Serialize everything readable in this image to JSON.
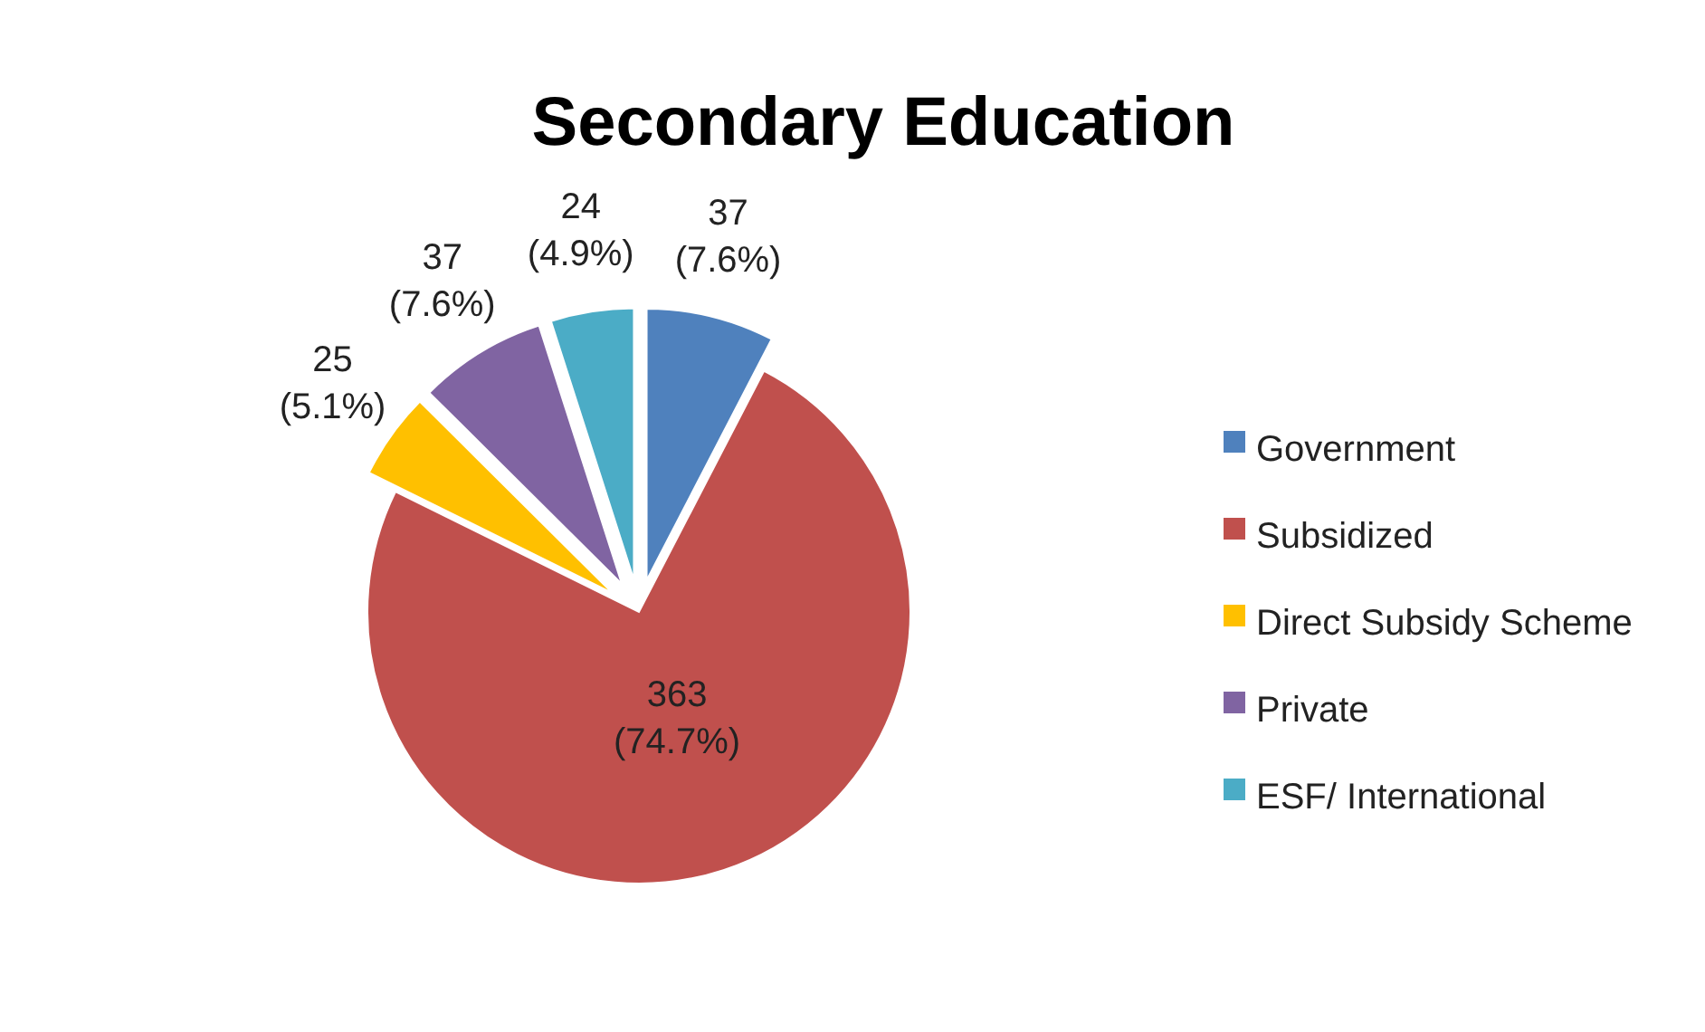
{
  "chart_data": {
    "type": "pie",
    "title": "Secondary Education",
    "categories": [
      "Government",
      "Subsidized",
      "Direct Subsidy Scheme",
      "Private",
      "ESF/ International"
    ],
    "values": [
      37,
      363,
      25,
      37,
      24
    ],
    "colors": [
      "#4f81bd",
      "#c0504d",
      "#ffc000",
      "#8064a2",
      "#4bacc6"
    ],
    "value_labels": [
      "37\n(7.6%)",
      "363\n(74.7%)",
      "25\n(5.1%)",
      "37\n(7.6%)",
      "24\n(4.9%)"
    ],
    "legend": "right"
  }
}
